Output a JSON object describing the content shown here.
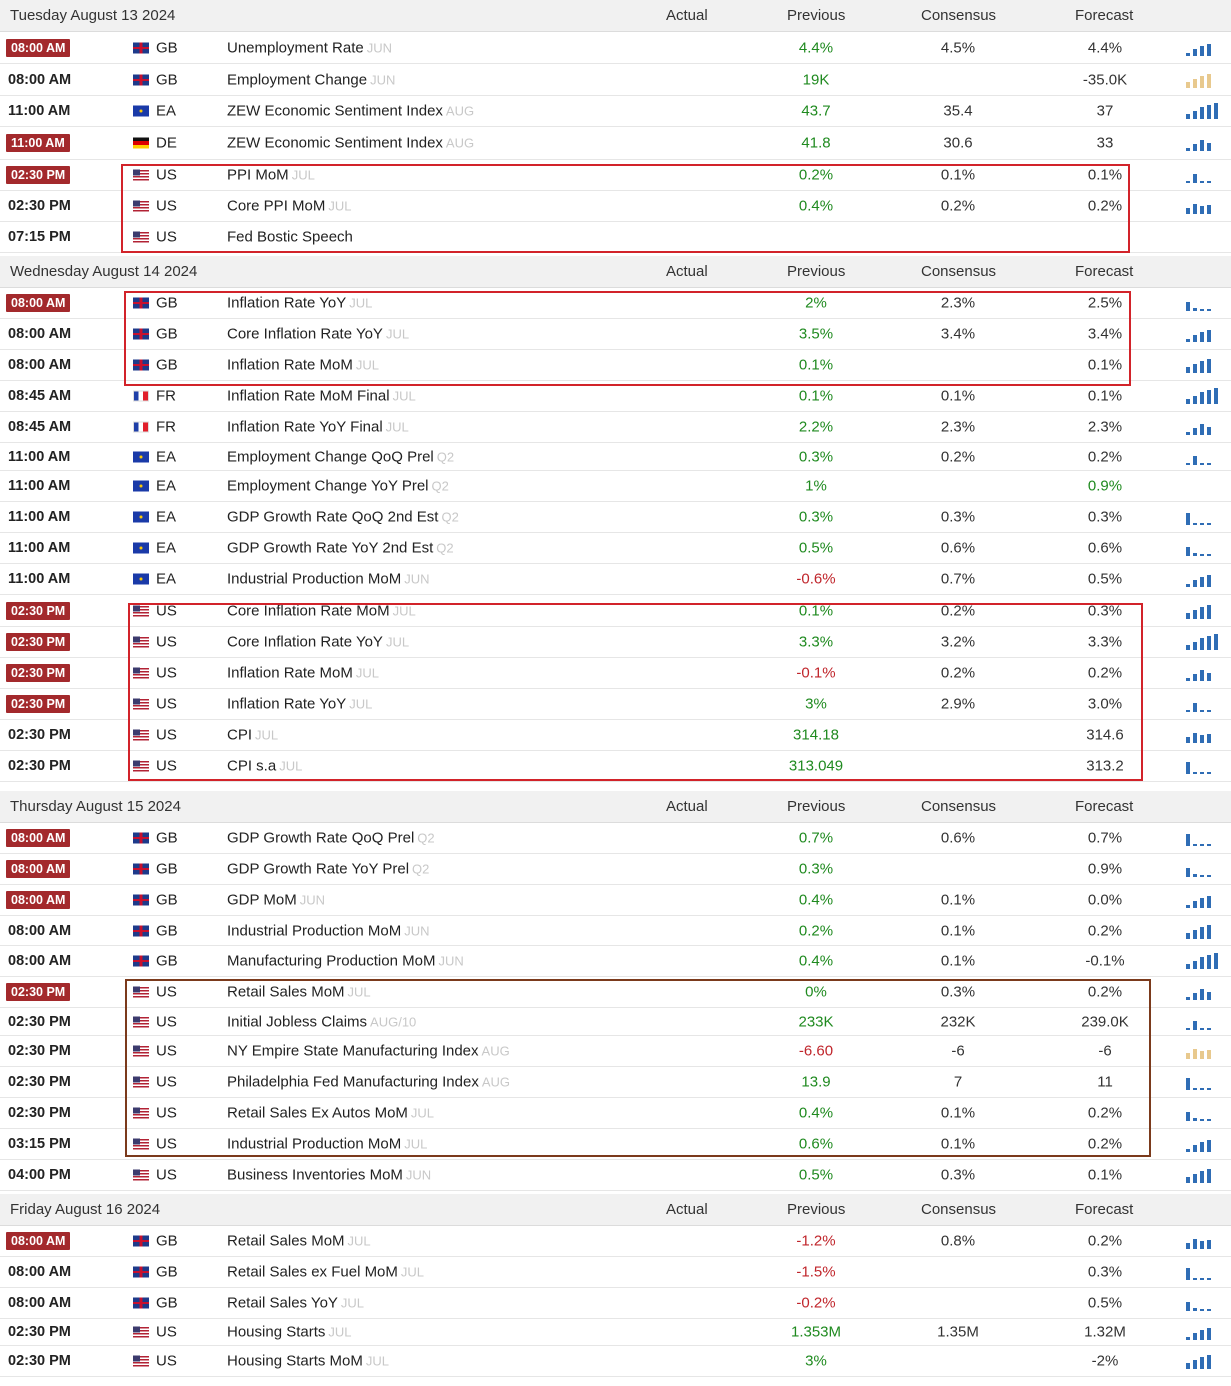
{
  "columns": {
    "actual": "Actual",
    "previous": "Previous",
    "consensus": "Consensus",
    "forecast": "Forecast"
  },
  "days": [
    {
      "title": "Tuesday August 13 2024",
      "rows": [
        {
          "time": "08:00 AM",
          "badge": true,
          "country": "GB",
          "event": "Unemployment Rate",
          "ref": "JUN",
          "previous": "4.4%",
          "consensus": "4.5%",
          "forecast": "4.4%"
        },
        {
          "time": "08:00 AM",
          "badge": false,
          "country": "GB",
          "event": "Employment Change",
          "ref": "JUN",
          "previous": "19K",
          "consensus": "",
          "forecast": "-35.0K"
        },
        {
          "time": "11:00 AM",
          "badge": false,
          "country": "EA",
          "event": "ZEW Economic Sentiment Index",
          "ref": "AUG",
          "previous": "43.7",
          "consensus": "35.4",
          "forecast": "37"
        },
        {
          "time": "11:00 AM",
          "badge": true,
          "country": "DE",
          "event": "ZEW Economic Sentiment Index",
          "ref": "AUG",
          "previous": "41.8",
          "consensus": "30.6",
          "forecast": "33"
        },
        {
          "time": "02:30 PM",
          "badge": true,
          "country": "US",
          "event": "PPI MoM",
          "ref": "JUL",
          "previous": "0.2%",
          "consensus": "0.1%",
          "forecast": "0.1%"
        },
        {
          "time": "02:30 PM",
          "badge": false,
          "country": "US",
          "event": "Core PPI MoM",
          "ref": "JUL",
          "previous": "0.4%",
          "consensus": "0.2%",
          "forecast": "0.2%"
        },
        {
          "time": "07:15 PM",
          "badge": false,
          "country": "US",
          "event": "Fed Bostic Speech",
          "ref": "",
          "previous": "",
          "consensus": "",
          "forecast": ""
        }
      ]
    },
    {
      "title": "Wednesday August 14 2024",
      "rows": [
        {
          "time": "08:00 AM",
          "badge": true,
          "country": "GB",
          "event": "Inflation Rate YoY",
          "ref": "JUL",
          "previous": "2%",
          "consensus": "2.3%",
          "forecast": "2.5%"
        },
        {
          "time": "08:00 AM",
          "badge": false,
          "country": "GB",
          "event": "Core Inflation Rate YoY",
          "ref": "JUL",
          "previous": "3.5%",
          "consensus": "3.4%",
          "forecast": "3.4%"
        },
        {
          "time": "08:00 AM",
          "badge": false,
          "country": "GB",
          "event": "Inflation Rate MoM",
          "ref": "JUL",
          "previous": "0.1%",
          "consensus": "",
          "forecast": "0.1%"
        },
        {
          "time": "08:45 AM",
          "badge": false,
          "country": "FR",
          "event": "Inflation Rate MoM Final",
          "ref": "JUL",
          "previous": "0.1%",
          "consensus": "0.1%",
          "forecast": "0.1%"
        },
        {
          "time": "08:45 AM",
          "badge": false,
          "country": "FR",
          "event": "Inflation Rate YoY Final",
          "ref": "JUL",
          "previous": "2.2%",
          "consensus": "2.3%",
          "forecast": "2.3%"
        },
        {
          "time": "11:00 AM",
          "badge": false,
          "country": "EA",
          "event": "Employment Change QoQ Prel",
          "ref": "Q2",
          "previous": "0.3%",
          "consensus": "0.2%",
          "forecast": "0.2%"
        },
        {
          "time": "11:00 AM",
          "badge": false,
          "country": "EA",
          "event": "Employment Change YoY Prel",
          "ref": "Q2",
          "previous": "1%",
          "consensus": "",
          "forecast": "0.9%"
        },
        {
          "time": "11:00 AM",
          "badge": false,
          "country": "EA",
          "event": "GDP Growth Rate QoQ 2nd Est",
          "ref": "Q2",
          "previous": "0.3%",
          "consensus": "0.3%",
          "forecast": "0.3%"
        },
        {
          "time": "11:00 AM",
          "badge": false,
          "country": "EA",
          "event": "GDP Growth Rate YoY 2nd Est",
          "ref": "Q2",
          "previous": "0.5%",
          "consensus": "0.6%",
          "forecast": "0.6%"
        },
        {
          "time": "11:00 AM",
          "badge": false,
          "country": "EA",
          "event": "Industrial Production MoM",
          "ref": "JUN",
          "previous": "-0.6%",
          "consensus": "0.7%",
          "forecast": "0.5%"
        },
        {
          "time": "02:30 PM",
          "badge": true,
          "country": "US",
          "event": "Core Inflation Rate MoM",
          "ref": "JUL",
          "previous": "0.1%",
          "consensus": "0.2%",
          "forecast": "0.3%"
        },
        {
          "time": "02:30 PM",
          "badge": true,
          "country": "US",
          "event": "Core Inflation Rate YoY",
          "ref": "JUL",
          "previous": "3.3%",
          "consensus": "3.2%",
          "forecast": "3.3%"
        },
        {
          "time": "02:30 PM",
          "badge": true,
          "country": "US",
          "event": "Inflation Rate MoM",
          "ref": "JUL",
          "previous": "-0.1%",
          "consensus": "0.2%",
          "forecast": "0.2%"
        },
        {
          "time": "02:30 PM",
          "badge": true,
          "country": "US",
          "event": "Inflation Rate YoY",
          "ref": "JUL",
          "previous": "3%",
          "consensus": "2.9%",
          "forecast": "3.0%"
        },
        {
          "time": "02:30 PM",
          "badge": false,
          "country": "US",
          "event": "CPI",
          "ref": "JUL",
          "previous": "314.18",
          "consensus": "",
          "forecast": "314.6"
        },
        {
          "time": "02:30 PM",
          "badge": false,
          "country": "US",
          "event": "CPI s.a",
          "ref": "JUL",
          "previous": "313.049",
          "consensus": "",
          "forecast": "313.2"
        }
      ]
    },
    {
      "title": "Thursday August 15 2024",
      "rows": [
        {
          "time": "08:00 AM",
          "badge": true,
          "country": "GB",
          "event": "GDP Growth Rate QoQ Prel",
          "ref": "Q2",
          "previous": "0.7%",
          "consensus": "0.6%",
          "forecast": "0.7%"
        },
        {
          "time": "08:00 AM",
          "badge": true,
          "country": "GB",
          "event": "GDP Growth Rate YoY Prel",
          "ref": "Q2",
          "previous": "0.3%",
          "consensus": "",
          "forecast": "0.9%"
        },
        {
          "time": "08:00 AM",
          "badge": true,
          "country": "GB",
          "event": "GDP MoM",
          "ref": "JUN",
          "previous": "0.4%",
          "consensus": "0.1%",
          "forecast": "0.0%"
        },
        {
          "time": "08:00 AM",
          "badge": false,
          "country": "GB",
          "event": "Industrial Production MoM",
          "ref": "JUN",
          "previous": "0.2%",
          "consensus": "0.1%",
          "forecast": "0.2%"
        },
        {
          "time": "08:00 AM",
          "badge": false,
          "country": "GB",
          "event": "Manufacturing Production MoM",
          "ref": "JUN",
          "previous": "0.4%",
          "consensus": "0.1%",
          "forecast": "-0.1%"
        },
        {
          "time": "02:30 PM",
          "badge": true,
          "country": "US",
          "event": "Retail Sales MoM",
          "ref": "JUL",
          "previous": "0%",
          "consensus": "0.3%",
          "forecast": "0.2%"
        },
        {
          "time": "02:30 PM",
          "badge": false,
          "country": "US",
          "event": "Initial Jobless Claims",
          "ref": "AUG/10",
          "previous": "233K",
          "consensus": "232K",
          "forecast": "239.0K"
        },
        {
          "time": "02:30 PM",
          "badge": false,
          "country": "US",
          "event": "NY Empire State Manufacturing Index",
          "ref": "AUG",
          "previous": "-6.60",
          "consensus": "-6",
          "forecast": "-6"
        },
        {
          "time": "02:30 PM",
          "badge": false,
          "country": "US",
          "event": "Philadelphia Fed Manufacturing Index",
          "ref": "AUG",
          "previous": "13.9",
          "consensus": "7",
          "forecast": "11"
        },
        {
          "time": "02:30 PM",
          "badge": false,
          "country": "US",
          "event": "Retail Sales Ex Autos MoM",
          "ref": "JUL",
          "previous": "0.4%",
          "consensus": "0.1%",
          "forecast": "0.2%"
        },
        {
          "time": "03:15 PM",
          "badge": false,
          "country": "US",
          "event": "Industrial Production MoM",
          "ref": "JUL",
          "previous": "0.6%",
          "consensus": "0.1%",
          "forecast": "0.2%"
        },
        {
          "time": "04:00 PM",
          "badge": false,
          "country": "US",
          "event": "Business Inventories MoM",
          "ref": "JUN",
          "previous": "0.5%",
          "consensus": "0.3%",
          "forecast": "0.1%"
        }
      ]
    },
    {
      "title": "Friday August 16 2024",
      "rows": [
        {
          "time": "08:00 AM",
          "badge": true,
          "country": "GB",
          "event": "Retail Sales MoM",
          "ref": "JUL",
          "previous": "-1.2%",
          "consensus": "0.8%",
          "forecast": "0.2%"
        },
        {
          "time": "08:00 AM",
          "badge": false,
          "country": "GB",
          "event": "Retail Sales ex Fuel MoM",
          "ref": "JUL",
          "previous": "-1.5%",
          "consensus": "",
          "forecast": "0.3%"
        },
        {
          "time": "08:00 AM",
          "badge": false,
          "country": "GB",
          "event": "Retail Sales YoY",
          "ref": "JUL",
          "previous": "-0.2%",
          "consensus": "",
          "forecast": "0.5%"
        },
        {
          "time": "02:30 PM",
          "badge": false,
          "country": "US",
          "event": "Housing Starts",
          "ref": "JUL",
          "previous": "1.353M",
          "consensus": "1.35M",
          "forecast": "1.32M"
        },
        {
          "time": "02:30 PM",
          "badge": false,
          "country": "US",
          "event": "Housing Starts MoM",
          "ref": "JUL",
          "previous": "3%",
          "consensus": "",
          "forecast": "-2%"
        }
      ]
    }
  ]
}
